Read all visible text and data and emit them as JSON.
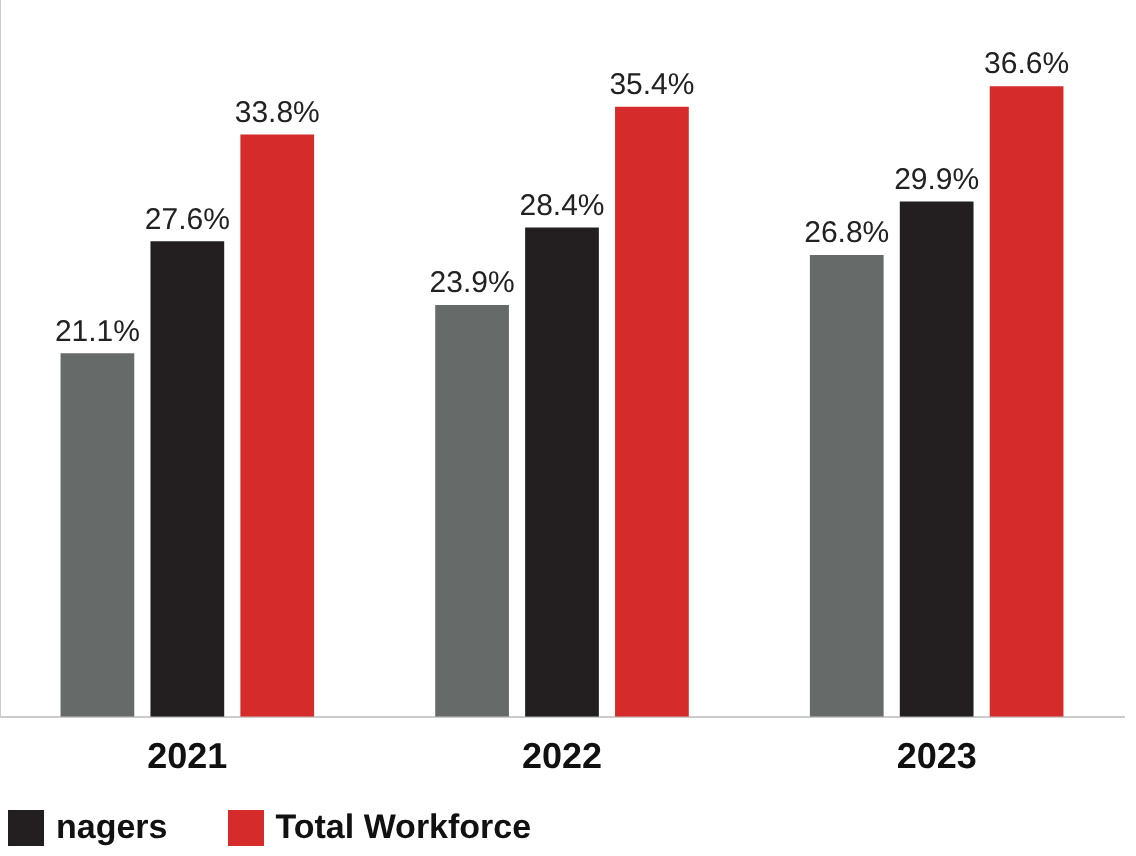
{
  "chart_data": {
    "type": "bar",
    "categories": [
      "2021",
      "2022",
      "2023"
    ],
    "series": [
      {
        "color": "#666a68",
        "values": [
          21.1,
          23.9,
          26.8
        ],
        "value_labels": [
          "21.1%",
          "23.9%",
          "26.8%"
        ]
      },
      {
        "name": "nagers",
        "color": "#231f20",
        "values": [
          27.6,
          28.4,
          29.9
        ],
        "value_labels": [
          "27.6%",
          "28.4%",
          "29.9%"
        ]
      },
      {
        "name": "Total Workforce",
        "color": "#d52b2b",
        "values": [
          33.8,
          35.4,
          36.6
        ],
        "value_labels": [
          "33.8%",
          "35.4%",
          "36.6%"
        ]
      }
    ],
    "ylim": [
      0,
      41.6
    ],
    "tick_labels": "x",
    "grid": false,
    "legend": "bottom"
  }
}
